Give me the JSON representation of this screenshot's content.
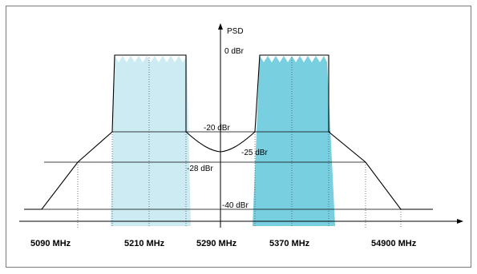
{
  "axis_label": "PSD",
  "levels": {
    "l0": "0 dBr",
    "l20": "-20 dBr",
    "l25": "-25 dBr",
    "l28": "-28 dBr",
    "l40": "-40 dBr"
  },
  "frequencies": [
    "5090 MHz",
    "5210 MHz",
    "5290 MHz",
    "5370 MHz",
    "54900 MHz"
  ],
  "colors": {
    "left_channel": "#cdebf2",
    "right_channel": "#78cfe0",
    "outline": "#000000",
    "border": "#7a7a7a"
  }
}
